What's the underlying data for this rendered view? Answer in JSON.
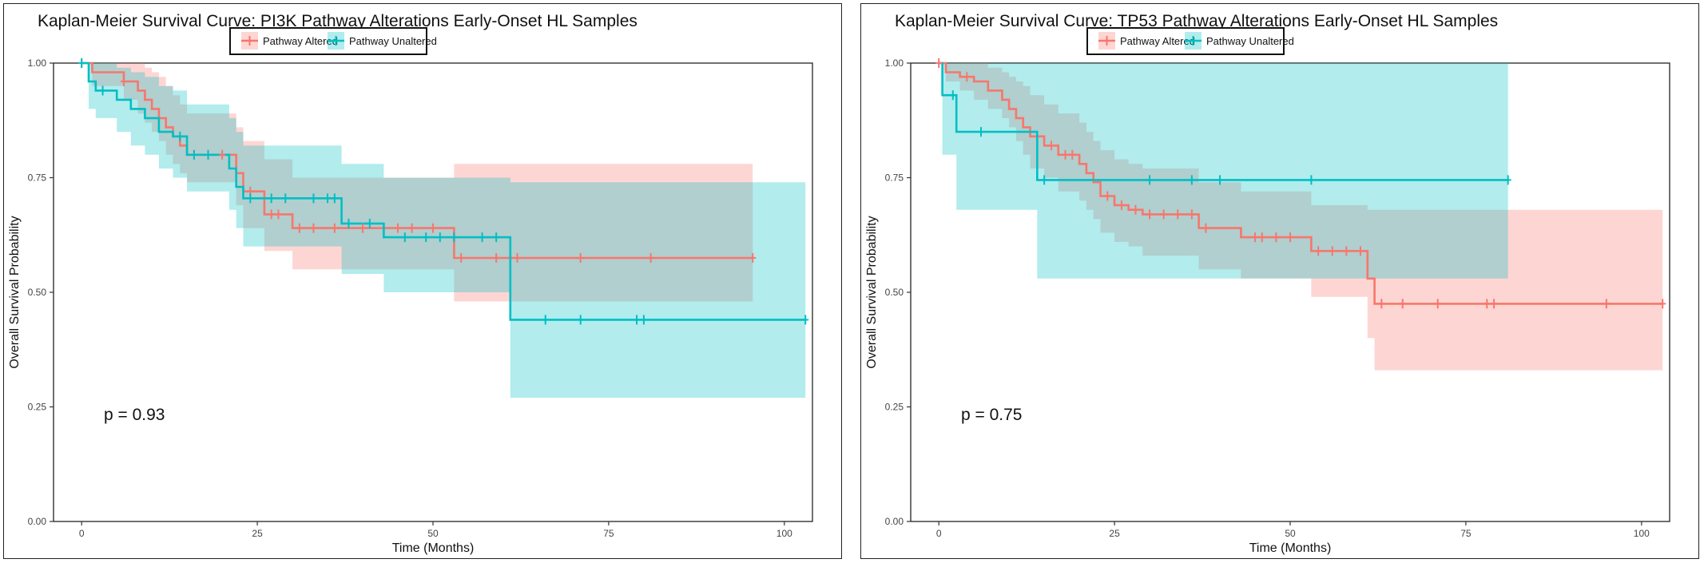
{
  "chart_data": [
    {
      "type": "line",
      "title": "Kaplan-Meier Survival Curve: PI3K Pathway Alterations Early-Onset HL Samples",
      "xlabel": "Time (Months)",
      "ylabel": "Overall Survival Probability",
      "xlim": [
        -4,
        104
      ],
      "ylim": [
        0,
        1
      ],
      "xticks": [
        0,
        25,
        50,
        75,
        100
      ],
      "xtick_labels": [
        "0",
        "25",
        "50",
        "75",
        "100"
      ],
      "yticks": [
        0,
        0.25,
        0.5,
        0.75,
        1
      ],
      "ytick_labels": [
        "0.00",
        "0.25",
        "0.50",
        "0.75",
        "1.00"
      ],
      "legend_position": "top-center",
      "annotation": "p = 0.93",
      "series": [
        {
          "name": "Pathway Altered",
          "color": "#F8766D",
          "band": "rgba(248,118,109,0.30)",
          "steps": [
            [
              0,
              1.0
            ],
            [
              1.5,
              0.98
            ],
            [
              6,
              0.96
            ],
            [
              8,
              0.94
            ],
            [
              9,
              0.92
            ],
            [
              10,
              0.9
            ],
            [
              11,
              0.88
            ],
            [
              12,
              0.86
            ],
            [
              13,
              0.84
            ],
            [
              14,
              0.82
            ],
            [
              15,
              0.8
            ],
            [
              22,
              0.76
            ],
            [
              23,
              0.72
            ],
            [
              26,
              0.67
            ],
            [
              30,
              0.64
            ],
            [
              53,
              0.575
            ],
            [
              95.5,
              0.575
            ]
          ],
          "lower": [
            1.0,
            0.95,
            0.92,
            0.89,
            0.87,
            0.85,
            0.83,
            0.8,
            0.78,
            0.76,
            0.74,
            0.69,
            0.64,
            0.59,
            0.55,
            0.48,
            0.48
          ],
          "upper": [
            1.0,
            1.0,
            1.0,
            1.0,
            0.99,
            0.98,
            0.97,
            0.95,
            0.93,
            0.91,
            0.89,
            0.86,
            0.83,
            0.79,
            0.75,
            0.78,
            0.78
          ],
          "censor": [
            [
              0,
              1.0
            ],
            [
              6,
              0.96
            ],
            [
              16,
              0.8
            ],
            [
              18,
              0.8
            ],
            [
              20,
              0.8
            ],
            [
              24,
              0.72
            ],
            [
              27,
              0.67
            ],
            [
              28,
              0.67
            ],
            [
              31,
              0.64
            ],
            [
              33,
              0.64
            ],
            [
              36,
              0.64
            ],
            [
              40,
              0.64
            ],
            [
              45,
              0.64
            ],
            [
              47,
              0.64
            ],
            [
              50,
              0.64
            ],
            [
              54,
              0.575
            ],
            [
              59,
              0.575
            ],
            [
              62,
              0.575
            ],
            [
              71,
              0.575
            ],
            [
              81,
              0.575
            ],
            [
              95.5,
              0.575
            ]
          ]
        },
        {
          "name": "Pathway Unaltered",
          "color": "#00BFC4",
          "band": "rgba(0,191,196,0.30)",
          "steps": [
            [
              0,
              1.0
            ],
            [
              1,
              0.96
            ],
            [
              2,
              0.94
            ],
            [
              5,
              0.92
            ],
            [
              7,
              0.9
            ],
            [
              9,
              0.88
            ],
            [
              11,
              0.85
            ],
            [
              13,
              0.84
            ],
            [
              15,
              0.8
            ],
            [
              21,
              0.77
            ],
            [
              22,
              0.73
            ],
            [
              23,
              0.705
            ],
            [
              37,
              0.65
            ],
            [
              43,
              0.62
            ],
            [
              61,
              0.44
            ],
            [
              103,
              0.44
            ]
          ],
          "lower": [
            1.0,
            0.9,
            0.88,
            0.85,
            0.82,
            0.8,
            0.77,
            0.75,
            0.72,
            0.68,
            0.64,
            0.6,
            0.54,
            0.5,
            0.27,
            0.27
          ],
          "upper": [
            1.0,
            1.0,
            1.0,
            0.99,
            0.98,
            0.97,
            0.95,
            0.94,
            0.91,
            0.88,
            0.85,
            0.82,
            0.78,
            0.75,
            0.74,
            0.74
          ],
          "censor": [
            [
              0,
              1.0
            ],
            [
              3,
              0.94
            ],
            [
              14,
              0.84
            ],
            [
              16,
              0.8
            ],
            [
              18,
              0.8
            ],
            [
              24,
              0.705
            ],
            [
              27,
              0.705
            ],
            [
              29,
              0.705
            ],
            [
              33,
              0.705
            ],
            [
              35,
              0.705
            ],
            [
              36,
              0.705
            ],
            [
              38,
              0.65
            ],
            [
              41,
              0.65
            ],
            [
              46,
              0.62
            ],
            [
              49,
              0.62
            ],
            [
              51,
              0.62
            ],
            [
              53,
              0.62
            ],
            [
              57,
              0.62
            ],
            [
              59,
              0.62
            ],
            [
              66,
              0.44
            ],
            [
              71,
              0.44
            ],
            [
              79,
              0.44
            ],
            [
              80,
              0.44
            ],
            [
              103,
              0.44
            ]
          ]
        }
      ]
    },
    {
      "type": "line",
      "title": "Kaplan-Meier Survival Curve: TP53 Pathway Alterations Early-Onset HL Samples",
      "xlabel": "Time (Months)",
      "ylabel": "Overall Survival Probability",
      "xlim": [
        -4,
        104
      ],
      "ylim": [
        0,
        1
      ],
      "xticks": [
        0,
        25,
        50,
        75,
        100
      ],
      "xtick_labels": [
        "0",
        "25",
        "50",
        "75",
        "100"
      ],
      "yticks": [
        0,
        0.25,
        0.5,
        0.75,
        1
      ],
      "ytick_labels": [
        "0.00",
        "0.25",
        "0.50",
        "0.75",
        "1.00"
      ],
      "legend_position": "top-center",
      "annotation": "p = 0.75",
      "series": [
        {
          "name": "Pathway Altered",
          "color": "#F8766D",
          "band": "rgba(248,118,109,0.30)",
          "steps": [
            [
              0,
              1.0
            ],
            [
              1,
              0.98
            ],
            [
              3,
              0.97
            ],
            [
              5,
              0.96
            ],
            [
              7,
              0.94
            ],
            [
              9,
              0.92
            ],
            [
              10,
              0.9
            ],
            [
              11,
              0.88
            ],
            [
              12,
              0.86
            ],
            [
              13,
              0.84
            ],
            [
              15,
              0.82
            ],
            [
              17,
              0.8
            ],
            [
              20,
              0.78
            ],
            [
              21,
              0.76
            ],
            [
              22,
              0.74
            ],
            [
              23,
              0.71
            ],
            [
              25,
              0.69
            ],
            [
              27,
              0.68
            ],
            [
              29,
              0.67
            ],
            [
              37,
              0.64
            ],
            [
              43,
              0.62
            ],
            [
              53,
              0.59
            ],
            [
              61,
              0.53
            ],
            [
              62,
              0.475
            ],
            [
              103,
              0.475
            ]
          ],
          "lower": [
            1.0,
            0.96,
            0.94,
            0.92,
            0.9,
            0.88,
            0.86,
            0.83,
            0.8,
            0.77,
            0.75,
            0.72,
            0.7,
            0.68,
            0.66,
            0.63,
            0.61,
            0.6,
            0.58,
            0.55,
            0.53,
            0.49,
            0.4,
            0.33,
            0.33
          ],
          "upper": [
            1.0,
            1.0,
            1.0,
            1.0,
            0.99,
            0.98,
            0.97,
            0.96,
            0.95,
            0.93,
            0.91,
            0.89,
            0.87,
            0.85,
            0.83,
            0.81,
            0.79,
            0.78,
            0.77,
            0.74,
            0.72,
            0.69,
            0.68,
            0.68,
            0.68
          ],
          "censor": [
            [
              0,
              1.0
            ],
            [
              4,
              0.97
            ],
            [
              16,
              0.82
            ],
            [
              18,
              0.8
            ],
            [
              19,
              0.8
            ],
            [
              24,
              0.71
            ],
            [
              26,
              0.69
            ],
            [
              28,
              0.68
            ],
            [
              30,
              0.67
            ],
            [
              32,
              0.67
            ],
            [
              34,
              0.67
            ],
            [
              36,
              0.67
            ],
            [
              38,
              0.64
            ],
            [
              45,
              0.62
            ],
            [
              46,
              0.62
            ],
            [
              48,
              0.62
            ],
            [
              50,
              0.62
            ],
            [
              54,
              0.59
            ],
            [
              56,
              0.59
            ],
            [
              58,
              0.59
            ],
            [
              60,
              0.59
            ],
            [
              63,
              0.475
            ],
            [
              66,
              0.475
            ],
            [
              71,
              0.475
            ],
            [
              78,
              0.475
            ],
            [
              79,
              0.475
            ],
            [
              95,
              0.475
            ],
            [
              103,
              0.475
            ]
          ]
        },
        {
          "name": "Pathway Unaltered",
          "color": "#00BFC4",
          "band": "rgba(0,191,196,0.30)",
          "steps": [
            [
              0,
              1.0
            ],
            [
              0.5,
              0.93
            ],
            [
              2.5,
              0.85
            ],
            [
              14,
              0.745
            ],
            [
              81,
              0.745
            ]
          ],
          "lower": [
            1.0,
            0.8,
            0.68,
            0.53,
            0.53
          ],
          "upper": [
            1.0,
            1.0,
            1.0,
            1.0,
            1.0
          ],
          "censor": [
            [
              2,
              0.93
            ],
            [
              6,
              0.85
            ],
            [
              15,
              0.745
            ],
            [
              30,
              0.745
            ],
            [
              36,
              0.745
            ],
            [
              40,
              0.745
            ],
            [
              53,
              0.745
            ],
            [
              81,
              0.745
            ]
          ]
        }
      ]
    }
  ]
}
